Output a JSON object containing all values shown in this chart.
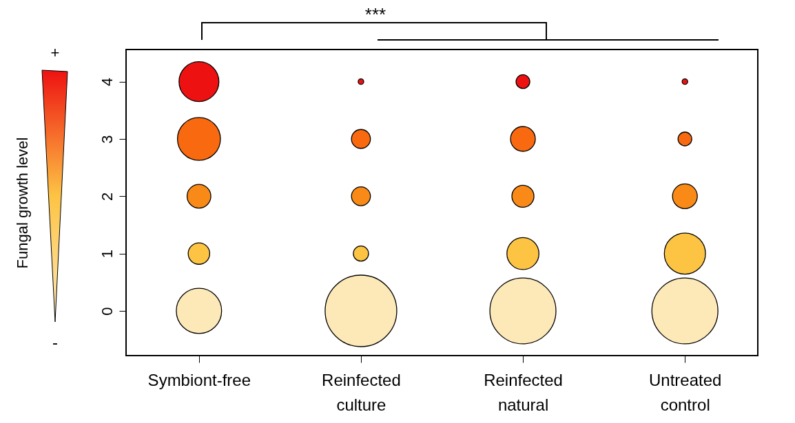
{
  "chart_data": {
    "type": "bubble",
    "ylabel": "Fungal growth level",
    "categories": [
      "Symbiont-free",
      "Reinfected culture",
      "Reinfected natural",
      "Untreated control"
    ],
    "series": [
      {
        "color": "#ee1111",
        "values": [
          4,
          4,
          4,
          4
        ],
        "sizes": [
          0.31,
          0.006,
          0.037,
          0.006
        ]
      },
      {
        "color": "#f96a10",
        "values": [
          3,
          3,
          3,
          3
        ],
        "sizes": [
          0.36,
          0.07,
          0.12,
          0.037
        ]
      },
      {
        "color": "#f98a18",
        "values": [
          2,
          2,
          2,
          2
        ],
        "sizes": [
          0.11,
          0.07,
          0.095,
          0.12
        ]
      },
      {
        "color": "#fdc444",
        "values": [
          1,
          1,
          1,
          1
        ],
        "sizes": [
          0.09,
          0.045,
          0.2,
          0.33
        ]
      },
      {
        "color": "#fde8b8",
        "values": [
          0,
          0,
          0,
          0
        ],
        "sizes": [
          0.4,
          1,
          0.85,
          0.85
        ]
      }
    ],
    "ylim": [
      -0.78,
      4.56
    ],
    "yticks": [
      0,
      1,
      2,
      3,
      4
    ],
    "grid": false,
    "legend": false,
    "marker": "circle",
    "annotations": [
      "***",
      "+",
      "-"
    ]
  }
}
